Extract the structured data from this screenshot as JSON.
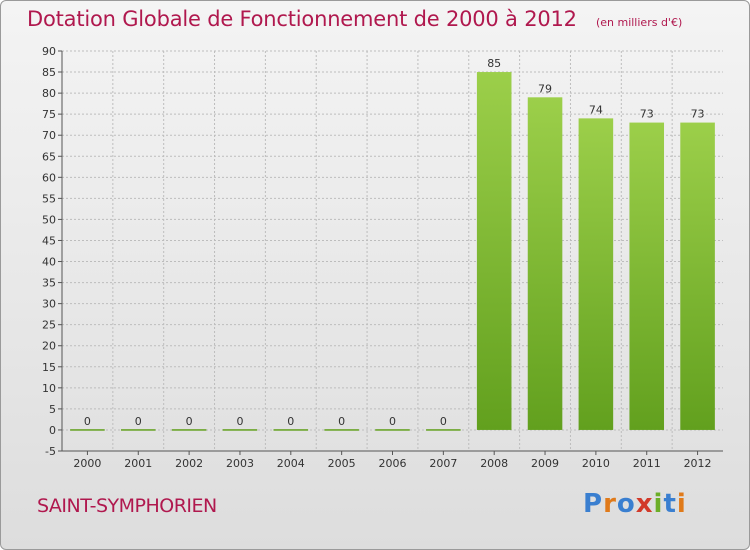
{
  "page": {
    "commune": "SAINT-SYMPHORIEN",
    "logo": "Proxiti"
  },
  "colors": {
    "title": "#b0184e",
    "bar_light": "#9ccf4a",
    "bar_dark": "#62a01e",
    "grid": "#bdbdbd",
    "background_top": "#f4f4f4",
    "background_bottom": "#dddddd"
  },
  "chart_data": {
    "type": "bar",
    "title": "Dotation Globale de Fonctionnement de 2000 à 2012",
    "subtitle": "(en milliers d'€)",
    "xlabel": "",
    "ylabel": "",
    "categories": [
      "2000",
      "2001",
      "2002",
      "2003",
      "2004",
      "2005",
      "2006",
      "2007",
      "2008",
      "2009",
      "2010",
      "2011",
      "2012"
    ],
    "values": [
      0,
      0,
      0,
      0,
      0,
      0,
      0,
      0,
      85,
      79,
      74,
      73,
      73
    ],
    "data_labels": [
      "0",
      "0",
      "0",
      "0",
      "0",
      "0",
      "0",
      "0",
      "85",
      "79",
      "74",
      "73",
      "73"
    ],
    "ylim": [
      -5,
      90
    ],
    "yticks": [
      -5,
      0,
      5,
      10,
      15,
      20,
      25,
      30,
      35,
      40,
      45,
      50,
      55,
      60,
      65,
      70,
      75,
      80,
      85,
      90
    ],
    "grid": true,
    "legend": "none"
  }
}
